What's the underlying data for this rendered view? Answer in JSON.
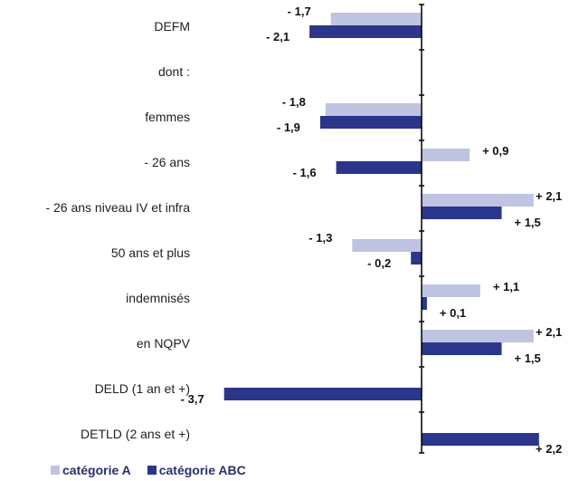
{
  "chart_data": {
    "type": "bar",
    "orientation": "horizontal",
    "categories": [
      "DEFM",
      "dont :",
      "femmes",
      "- 26 ans",
      "- 26 ans niveau IV et infra",
      "50 ans et plus",
      "indemnisés",
      "en NQPV",
      "DELD (1 an et +)",
      "DETLD (2 ans et +)"
    ],
    "series": [
      {
        "name": "catégorie A",
        "color": "#bfc4e3",
        "values": [
          -1.7,
          null,
          -1.8,
          0.9,
          2.1,
          -1.3,
          1.1,
          2.1,
          null,
          null
        ],
        "labels": [
          "- 1,7",
          "",
          "- 1,8",
          "+ 0,9",
          "+ 2,1",
          "- 1,3",
          "+ 1,1",
          "+ 2,1",
          "",
          ""
        ]
      },
      {
        "name": "catégorie ABC",
        "color": "#2b3589",
        "values": [
          -2.1,
          null,
          -1.9,
          -1.6,
          1.5,
          -0.2,
          0.1,
          1.5,
          -3.7,
          2.2
        ],
        "labels": [
          "- 2,1",
          "",
          "- 1,9",
          "- 1,6",
          "+ 1,5",
          "- 0,2",
          "+ 0,1",
          "+ 1,5",
          "- 3,7",
          "+ 2,2"
        ]
      }
    ],
    "xlim": [
      -3.7,
      2.3
    ],
    "grid": false,
    "legend_position": "bottom-left"
  },
  "legend": {
    "items": [
      {
        "label": "catégorie A",
        "color": "#bfc4e3"
      },
      {
        "label": "catégorie ABC",
        "color": "#2b3589"
      }
    ]
  }
}
